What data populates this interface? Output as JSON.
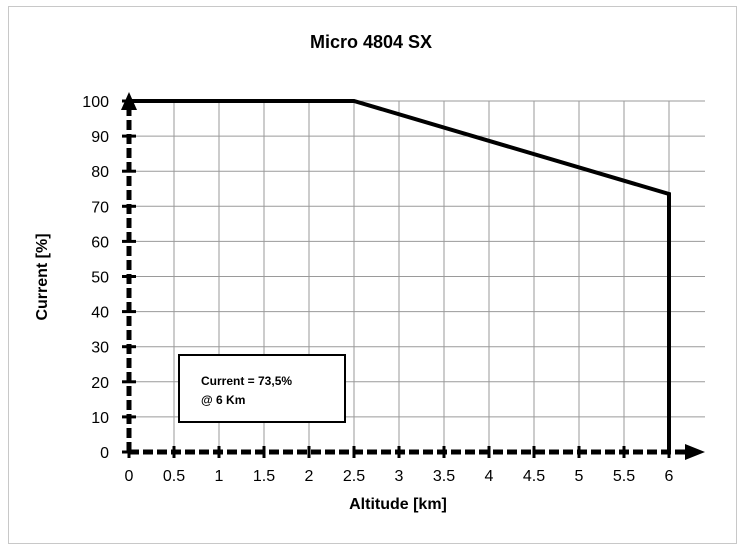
{
  "chart_data": {
    "type": "line",
    "title": "Micro 4804  SX",
    "xlabel": "Altitude [km]",
    "ylabel": "Current [%]",
    "xlim": [
      0,
      6
    ],
    "ylim": [
      0,
      100
    ],
    "x_ticks": [
      "0",
      "0.5",
      "1",
      "1.5",
      "2",
      "2.5",
      "3",
      "3.5",
      "4",
      "4.5",
      "5",
      "5.5",
      "6"
    ],
    "y_ticks": [
      "0",
      "10",
      "20",
      "30",
      "40",
      "50",
      "60",
      "70",
      "80",
      "90",
      "100"
    ],
    "grid": true,
    "series": [
      {
        "x": [
          0,
          2.5,
          6,
          6
        ],
        "y": [
          100,
          100,
          73.5,
          0
        ]
      }
    ],
    "annotation": {
      "line1": "Current = 73,5%",
      "line2": "@ 6 Km"
    }
  }
}
